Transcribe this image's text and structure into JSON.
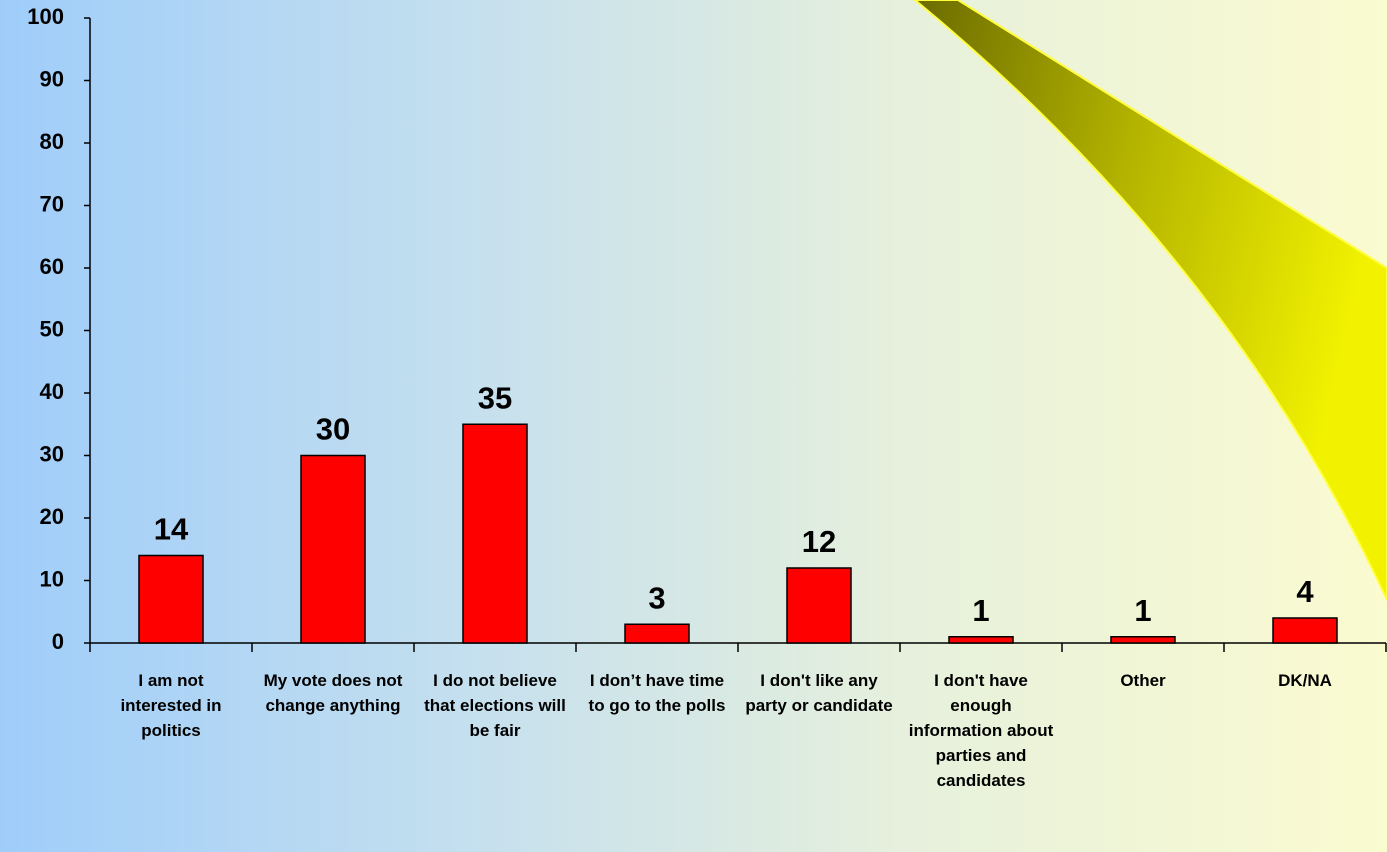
{
  "chart_data": {
    "type": "bar",
    "categories": [
      "I am not interested in politics",
      "My vote does not change anything",
      "I do not believe that elections will be fair",
      "I don’t have time to go to the polls",
      "I don't like any party or candidate",
      "I don't have enough information about parties and candidates",
      "Other",
      "DK/NA"
    ],
    "values": [
      14,
      30,
      35,
      3,
      12,
      1,
      1,
      4
    ],
    "color": "#ff0000",
    "ylim": [
      0,
      100
    ],
    "yticks": [
      0,
      10,
      20,
      30,
      40,
      50,
      60,
      70,
      80,
      90,
      100
    ],
    "grid": false
  }
}
